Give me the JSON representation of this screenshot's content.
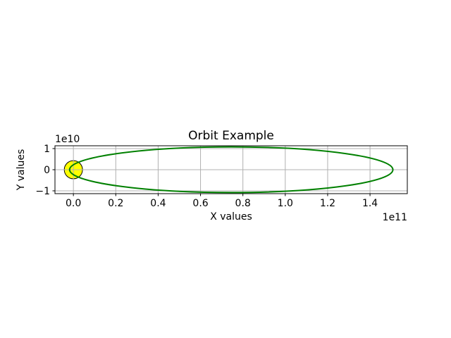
{
  "figure": {
    "background": "#ffffff"
  },
  "chart_data": {
    "type": "line",
    "title": "Orbit Example",
    "xlabel": "X values",
    "ylabel": "Y values",
    "x_offset_text": "1e11",
    "y_offset_text": "1e10",
    "xlim": [
      -8700000000.0,
      157600000000.0
    ],
    "ylim": [
      -11333000000.0,
      11333000000.0
    ],
    "xticks": {
      "values": [
        0,
        20000000000.0,
        40000000000.0,
        60000000000.0,
        80000000000.0,
        100000000000.0,
        120000000000.0,
        140000000000.0
      ],
      "labels": [
        "0.0",
        "0.2",
        "0.4",
        "0.6",
        "0.8",
        "1.0",
        "1.2",
        "1.4"
      ]
    },
    "yticks": {
      "values": [
        -10000000000.0,
        0,
        10000000000.0
      ],
      "labels": [
        "−1",
        "0",
        "1"
      ]
    },
    "grid": true,
    "legend": false,
    "colors": {
      "grid": "#b0b0b0",
      "spine": "#000000",
      "orbit": "#008000",
      "sun_fill": "#ffff00",
      "sun_edge": "#000000",
      "text": "#000000"
    },
    "series": [
      {
        "name": "orbit",
        "shape": "ellipse",
        "center_x": 74500000000.0,
        "center_y": 0,
        "semi_major": 76300000000.0,
        "semi_minor": 10800000000.0,
        "linewidth": 2
      },
      {
        "name": "sun",
        "shape": "circle",
        "center_x": 0,
        "center_y": 0,
        "radius": 4300000000.0,
        "linewidth": 1
      }
    ]
  }
}
